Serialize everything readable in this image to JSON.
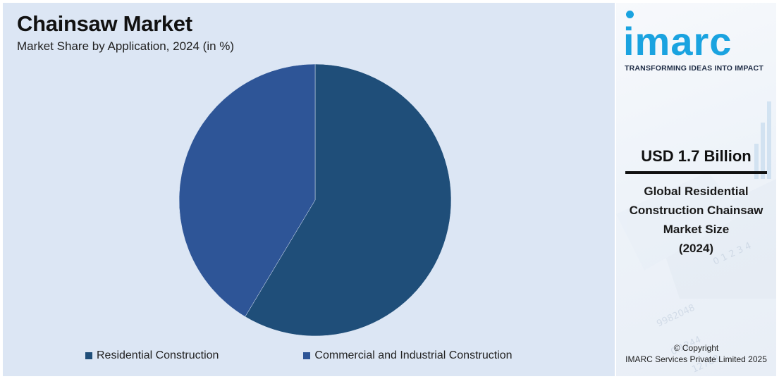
{
  "chart_data": {
    "type": "pie",
    "title": "Chainsaw Market",
    "subtitle": "Market Share by Application, 2024 (in %)",
    "categories": [
      "Residential Construction",
      "Commercial and Industrial Construction"
    ],
    "values": [
      58.6,
      41.4
    ],
    "colors": [
      "#1f4e79",
      "#2e5597"
    ],
    "legend_position": "bottom"
  },
  "brand": {
    "name": "imarc",
    "tagline": "TRANSFORMING IDEAS INTO IMPACT",
    "color": "#1aa3e0"
  },
  "stat": {
    "value": "USD 1.7 Billion",
    "label_lines": [
      "Global Residential",
      "Construction Chainsaw",
      "Market Size",
      "(2024)"
    ]
  },
  "footer": {
    "line1": "© Copyright",
    "line2": "IMARC Services Private Limited 2025"
  }
}
